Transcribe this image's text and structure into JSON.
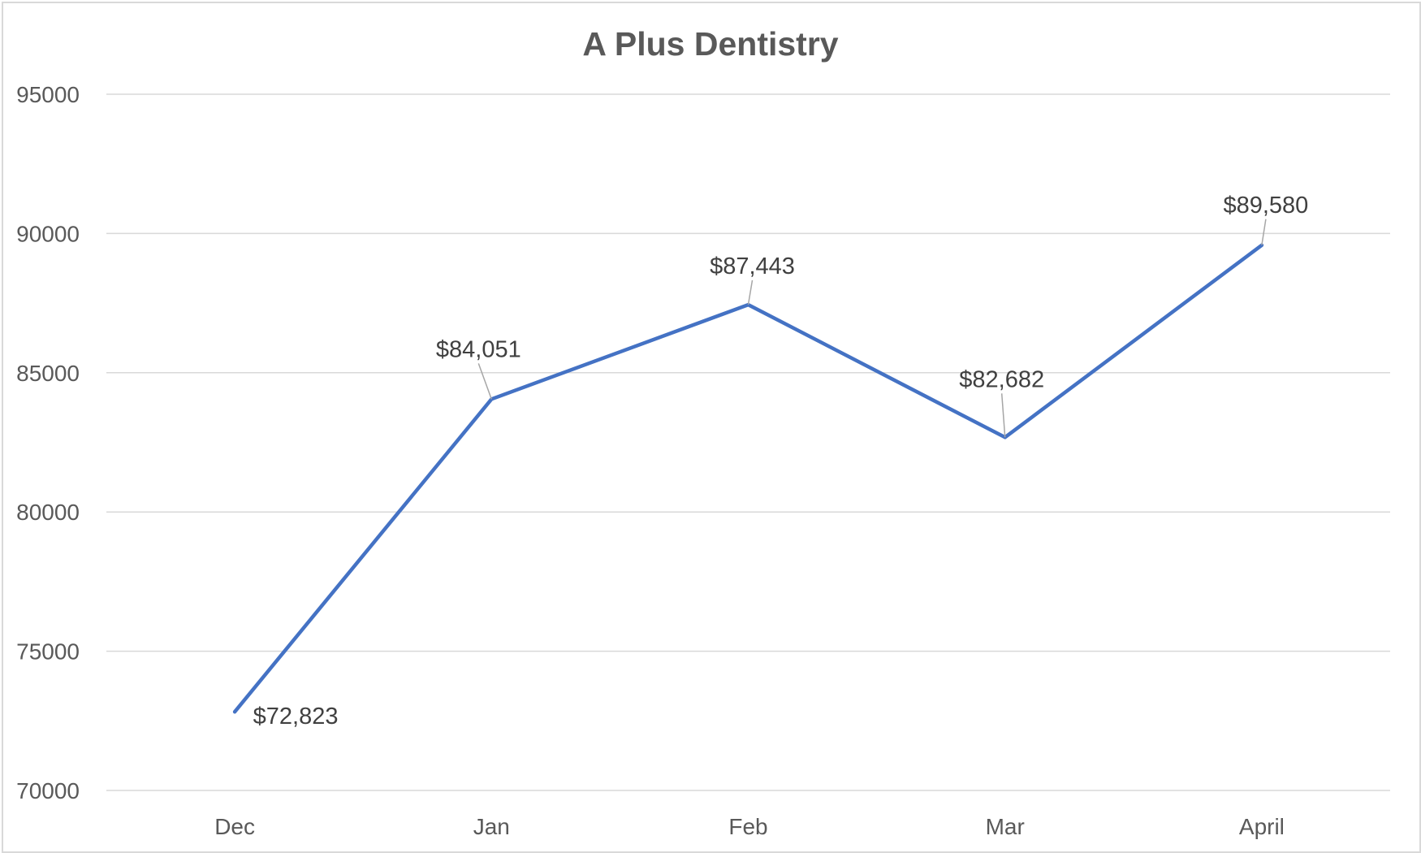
{
  "chart_data": {
    "type": "line",
    "title": "A Plus Dentistry",
    "xlabel": "",
    "ylabel": "",
    "categories": [
      "Dec",
      "Jan",
      "Feb",
      "Mar",
      "April"
    ],
    "series": [
      {
        "values": [
          72823,
          84051,
          87443,
          82682,
          89580
        ],
        "data_labels": [
          "$72,823",
          "$84,051",
          "$87,443",
          "$82,682",
          "$89,580"
        ],
        "color": "#4472c4"
      }
    ],
    "ylim": [
      70000,
      95000
    ],
    "yticks": [
      70000,
      75000,
      80000,
      85000,
      90000,
      95000
    ],
    "ytick_labels": [
      "70000",
      "75000",
      "80000",
      "85000",
      "90000",
      "95000"
    ],
    "grid": true,
    "legend": "none"
  }
}
